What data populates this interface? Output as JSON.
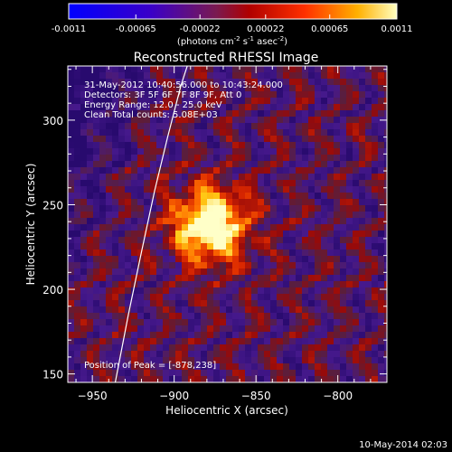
{
  "colorbar": {
    "ticks": [
      "-0.0011",
      "-0.00065",
      "-0.00022",
      "0.00022",
      "0.00065",
      "0.0011"
    ],
    "label": "(photons cm",
    "label_sup1": "-2",
    "label_mid": " s",
    "label_sup2": "-1",
    "label_end": " asec",
    "label_sup3": "-2",
    "label_close": ")",
    "min": -0.0011,
    "max": 0.0011
  },
  "chart_data": {
    "type": "heatmap",
    "title": "Reconstructed RHESSI Image",
    "xlabel": "Heliocentric X (arcsec)",
    "ylabel": "Heliocentric Y (arcsec)",
    "xlim": [
      -965,
      -770
    ],
    "ylim": [
      145,
      332
    ],
    "x_ticks": [
      -950,
      -900,
      -850,
      -800
    ],
    "y_ticks": [
      150,
      200,
      250,
      300
    ],
    "peak": {
      "x": -878,
      "y": 238
    },
    "annotations": {
      "time": "31-May-2012 10:40:56.000 to 10:43:24.000",
      "detectors": "Detectors: 3F 5F 6F 7F 8F 9F, Att 0",
      "energy": "Energy Range: 12.0 - 25.0 keV",
      "clean": "Clean     Total counts: 5.08E+03",
      "peak_text": "Position of Peak = [-878,238]"
    },
    "limb": [
      [
        -936,
        145
      ],
      [
        -928,
        185
      ],
      [
        -920,
        222
      ],
      [
        -912,
        258
      ],
      [
        -904,
        290
      ],
      [
        -896,
        320
      ],
      [
        -892,
        332
      ]
    ]
  },
  "footer": {
    "timestamp": "10-May-2014 02:03"
  }
}
